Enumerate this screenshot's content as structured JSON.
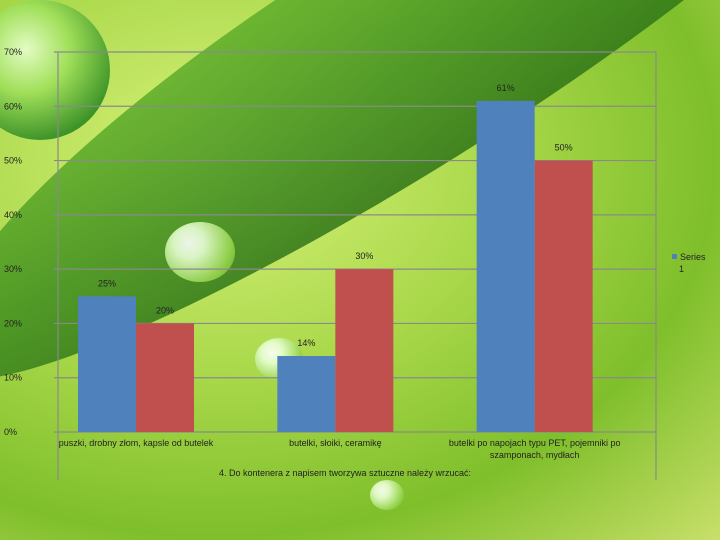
{
  "chart_data": {
    "type": "bar",
    "title": "4. Do kontenera z napisem tworzywa sztuczne należy wrzucać:",
    "categories": [
      [
        "puszki, drobny złom, kapsle od butelek"
      ],
      [
        "butelki, słoiki, ceramikę"
      ],
      [
        "butelki po napojach typu PET, pojemniki po",
        "szamponach, mydłach"
      ]
    ],
    "series": [
      {
        "name": "",
        "values": [
          25,
          14,
          61
        ],
        "color": "#4f81bd",
        "labels": [
          "25%",
          "14%",
          "61%"
        ]
      },
      {
        "name": "",
        "values": [
          20,
          30,
          50
        ],
        "color": "#c0504d",
        "labels": [
          "20%",
          "30%",
          "50%"
        ]
      }
    ],
    "legend": {
      "entries": [
        "Series",
        "1"
      ],
      "placement": "right"
    },
    "ylim": [
      0,
      70
    ],
    "yticks": [
      "0%",
      "10%",
      "20%",
      "30%",
      "40%",
      "50%",
      "60%",
      "70%"
    ],
    "grid": true
  }
}
